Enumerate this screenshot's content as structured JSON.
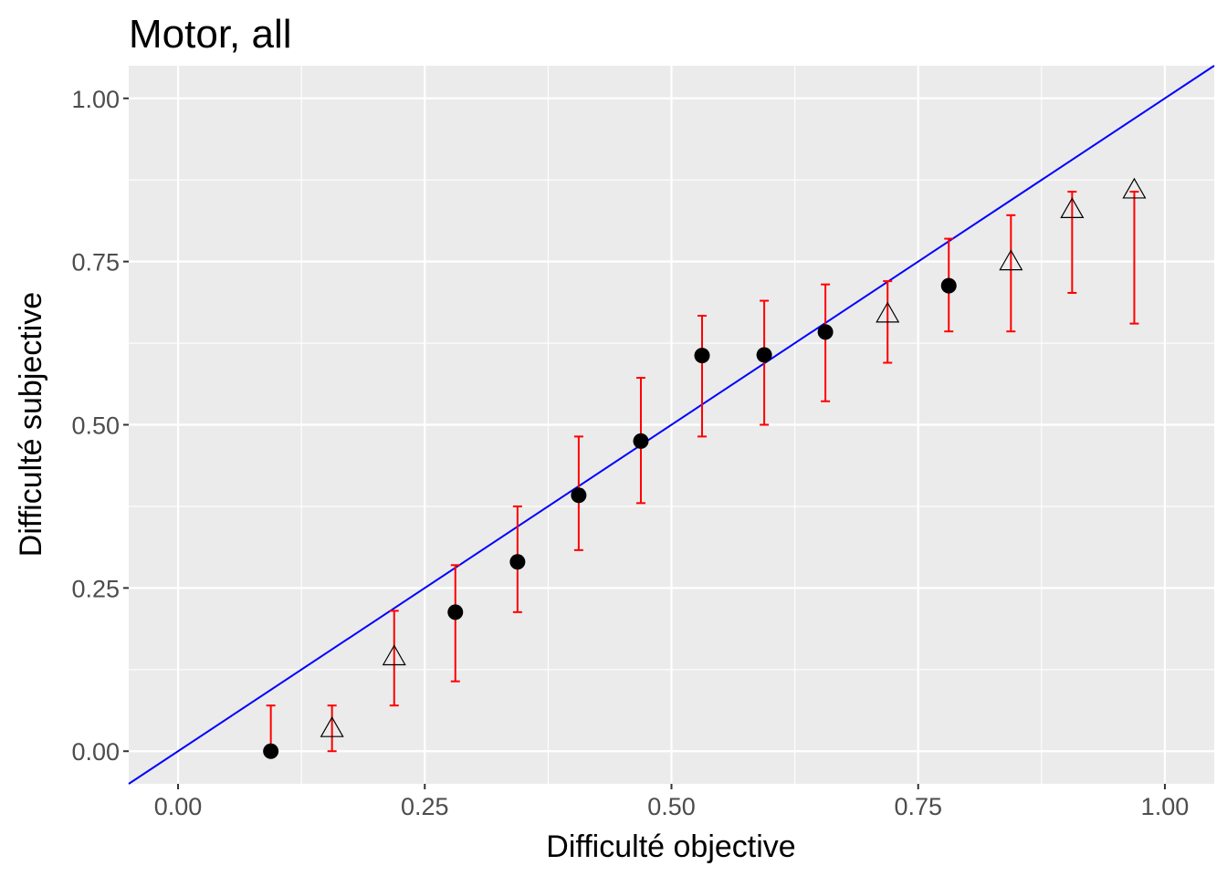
{
  "chart_data": {
    "type": "scatter",
    "title": "Motor, all",
    "xlabel": "Difficulté objective",
    "ylabel": "Difficulté subjective",
    "xlim": [
      -0.05,
      1.05
    ],
    "ylim": [
      -0.05,
      1.05
    ],
    "xticks": [
      "0.00",
      "0.25",
      "0.50",
      "0.75",
      "1.00"
    ],
    "yticks": [
      "0.00",
      "0.25",
      "0.50",
      "0.75",
      "1.00"
    ],
    "grid": true,
    "background": "#ebebeb",
    "reference_line": {
      "slope": 1,
      "intercept": 0,
      "color": "#0000ff"
    },
    "error_bar_color": "#ff0000",
    "points": [
      {
        "x": 0.094,
        "y": 0.0,
        "low": 0.0,
        "high": 0.07,
        "marker": "circle"
      },
      {
        "x": 0.156,
        "y": 0.035,
        "low": 0.0,
        "high": 0.07,
        "marker": "triangle"
      },
      {
        "x": 0.219,
        "y": 0.145,
        "low": 0.07,
        "high": 0.215,
        "marker": "triangle"
      },
      {
        "x": 0.281,
        "y": 0.213,
        "low": 0.107,
        "high": 0.285,
        "marker": "circle"
      },
      {
        "x": 0.344,
        "y": 0.29,
        "low": 0.213,
        "high": 0.375,
        "marker": "circle"
      },
      {
        "x": 0.406,
        "y": 0.392,
        "low": 0.308,
        "high": 0.482,
        "marker": "circle"
      },
      {
        "x": 0.469,
        "y": 0.475,
        "low": 0.38,
        "high": 0.572,
        "marker": "circle"
      },
      {
        "x": 0.531,
        "y": 0.606,
        "low": 0.482,
        "high": 0.667,
        "marker": "circle"
      },
      {
        "x": 0.594,
        "y": 0.607,
        "low": 0.5,
        "high": 0.69,
        "marker": "circle"
      },
      {
        "x": 0.656,
        "y": 0.642,
        "low": 0.536,
        "high": 0.715,
        "marker": "circle"
      },
      {
        "x": 0.719,
        "y": 0.67,
        "low": 0.595,
        "high": 0.72,
        "marker": "triangle"
      },
      {
        "x": 0.781,
        "y": 0.713,
        "low": 0.643,
        "high": 0.785,
        "marker": "circle"
      },
      {
        "x": 0.844,
        "y": 0.75,
        "low": 0.643,
        "high": 0.821,
        "marker": "triangle"
      },
      {
        "x": 0.906,
        "y": 0.83,
        "low": 0.702,
        "high": 0.857,
        "marker": "triangle"
      },
      {
        "x": 0.969,
        "y": 0.86,
        "low": 0.655,
        "high": 0.857,
        "marker": "triangle"
      }
    ]
  }
}
